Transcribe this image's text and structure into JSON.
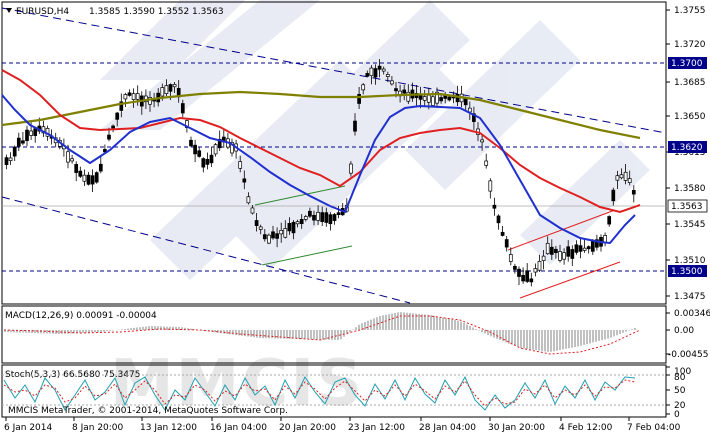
{
  "header": {
    "symbol": "EURUSD,H4",
    "ohlc": "1.3585 1.3590 1.3552 1.3563"
  },
  "price_axis": {
    "ticks": [
      "1.3755",
      "1.3720",
      "1.3685",
      "1.3650",
      "1.3615",
      "1.3580",
      "1.3545",
      "1.3510",
      "1.3475"
    ],
    "levels": [
      "1.3700",
      "1.3620",
      "1.3500"
    ],
    "current": "1.3563"
  },
  "macd": {
    "label": "MACD(12,26,9) 0.00091 -0.00004",
    "ticks": [
      "0.00346",
      "0.00",
      "-0.00455"
    ]
  },
  "stoch": {
    "label": "Stoch(5,3,3) 66.5680 75.3475",
    "ticks": [
      "100",
      "80",
      "50",
      "20",
      "0"
    ]
  },
  "copyright": "MMCIS MetaTrader, © 2001-2014, MetaQuotes Software Corp.",
  "watermark": "MMCIS",
  "time_axis": [
    "6 Jan 2014",
    "8 Jan 20:00",
    "13 Jan 12:00",
    "16 Jan 04:00",
    "20 Jan 20:00",
    "23 Jan 12:00",
    "28 Jan 04:00",
    "30 Jan 20:00",
    "4 Feb 12:00",
    "7 Feb 04:00"
  ],
  "colors": {
    "ma_long": "#808000",
    "ma_mid": "#e02020",
    "ma_fast": "#2030d0",
    "channel": "#00008b",
    "level_box": "#00008b",
    "macd_signal": "#e02020",
    "stoch_main": "#20a0b0",
    "stoch_signal": "#e02020"
  },
  "chart_data": {
    "type": "line",
    "title": "",
    "ylim": [
      1.3465,
      1.3762
    ],
    "x": [
      "6 Jan 2014",
      "8 Jan 20:00",
      "13 Jan 12:00",
      "16 Jan 04:00",
      "20 Jan 20:00",
      "23 Jan 12:00",
      "28 Jan 04:00",
      "30 Jan 20:00",
      "4 Feb 12:00",
      "7 Feb 04:00"
    ],
    "series": [
      {
        "values": [
          1.3605,
          1.36,
          1.364,
          1.36,
          1.3535,
          1.37,
          1.3665,
          1.3505,
          1.353,
          1.3563
        ]
      },
      {
        "values": [
          1.364,
          1.3655,
          1.367,
          1.368,
          1.368,
          1.3685,
          1.368,
          1.3665,
          1.3645,
          1.363
        ]
      },
      {
        "values": [
          1.366,
          1.362,
          1.3625,
          1.3615,
          1.3575,
          1.364,
          1.365,
          1.362,
          1.357,
          1.3563
        ]
      },
      {
        "values": [
          1.36,
          1.3615,
          1.365,
          1.3605,
          1.3545,
          1.3645,
          1.3665,
          1.3575,
          1.3525,
          1.3555
        ]
      }
    ]
  }
}
